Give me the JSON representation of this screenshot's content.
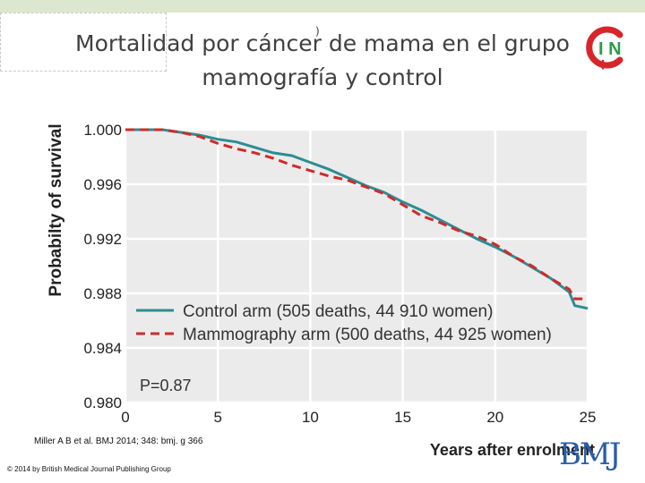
{
  "slide": {
    "title_line1": "Mortalidad por cáncer de mama en el grupo",
    "title_line2": "mamografía y control",
    "title_mark": ")",
    "citation": "Miller A B et al. BMJ 2014; 348: bmj. g 366",
    "copyright": "© 2014 by British Medical Journal Publishing Group",
    "brand_bmj": "BMJ",
    "logo_letters": "I N",
    "colors": {
      "title": "#404040",
      "topbar": "#dde6cf",
      "logo_red": "#d7262b",
      "logo_green": "#2e9b49"
    }
  },
  "chart_data": {
    "type": "line",
    "title": "",
    "xlabel": "Years after enrolment",
    "ylabel": "Probabilty of survival",
    "xlim": [
      0,
      25
    ],
    "ylim": [
      0.98,
      1.0
    ],
    "x_ticks": [
      "0",
      "5",
      "10",
      "15",
      "20",
      "25"
    ],
    "y_ticks": [
      "1.000",
      "0.996",
      "0.992",
      "0.988",
      "0.984",
      "0.980"
    ],
    "grid": true,
    "annotation": "P=0.87",
    "legend_position": "bottom-left",
    "series": [
      {
        "name": "Control arm (505 deaths, 44 910 women)",
        "style": "solid",
        "color": "#2c8d94",
        "x": [
          0,
          1,
          2,
          3,
          4,
          5,
          6,
          7,
          8,
          9,
          10,
          11,
          12,
          13,
          14,
          15,
          16,
          17,
          18,
          19,
          20,
          21,
          22,
          23,
          23.5,
          24,
          24.3,
          25
        ],
        "y": [
          1.0,
          1.0,
          1.0,
          0.9998,
          0.9996,
          0.9993,
          0.9991,
          0.9987,
          0.9983,
          0.9981,
          0.9976,
          0.9971,
          0.9965,
          0.9959,
          0.9954,
          0.9947,
          0.9941,
          0.9934,
          0.9927,
          0.992,
          0.9914,
          0.9907,
          0.9899,
          0.9891,
          0.9886,
          0.9881,
          0.9871,
          0.9869
        ]
      },
      {
        "name": "Mammography arm (500 deaths, 44 925 women)",
        "style": "dashed",
        "color": "#d02a2a",
        "x": [
          0,
          1,
          2,
          3,
          4,
          5,
          6,
          7,
          8,
          9,
          10,
          11,
          12,
          13,
          14,
          15,
          16,
          17,
          18,
          19,
          20,
          21,
          22,
          23,
          24,
          24.3,
          25
        ],
        "y": [
          1.0,
          1.0,
          1.0,
          0.9998,
          0.9995,
          0.999,
          0.9986,
          0.9983,
          0.9979,
          0.9974,
          0.997,
          0.9966,
          0.9963,
          0.9958,
          0.9953,
          0.9945,
          0.9937,
          0.9932,
          0.9926,
          0.9922,
          0.9916,
          0.9907,
          0.99,
          0.9891,
          0.9883,
          0.9876,
          0.9876
        ]
      }
    ]
  }
}
